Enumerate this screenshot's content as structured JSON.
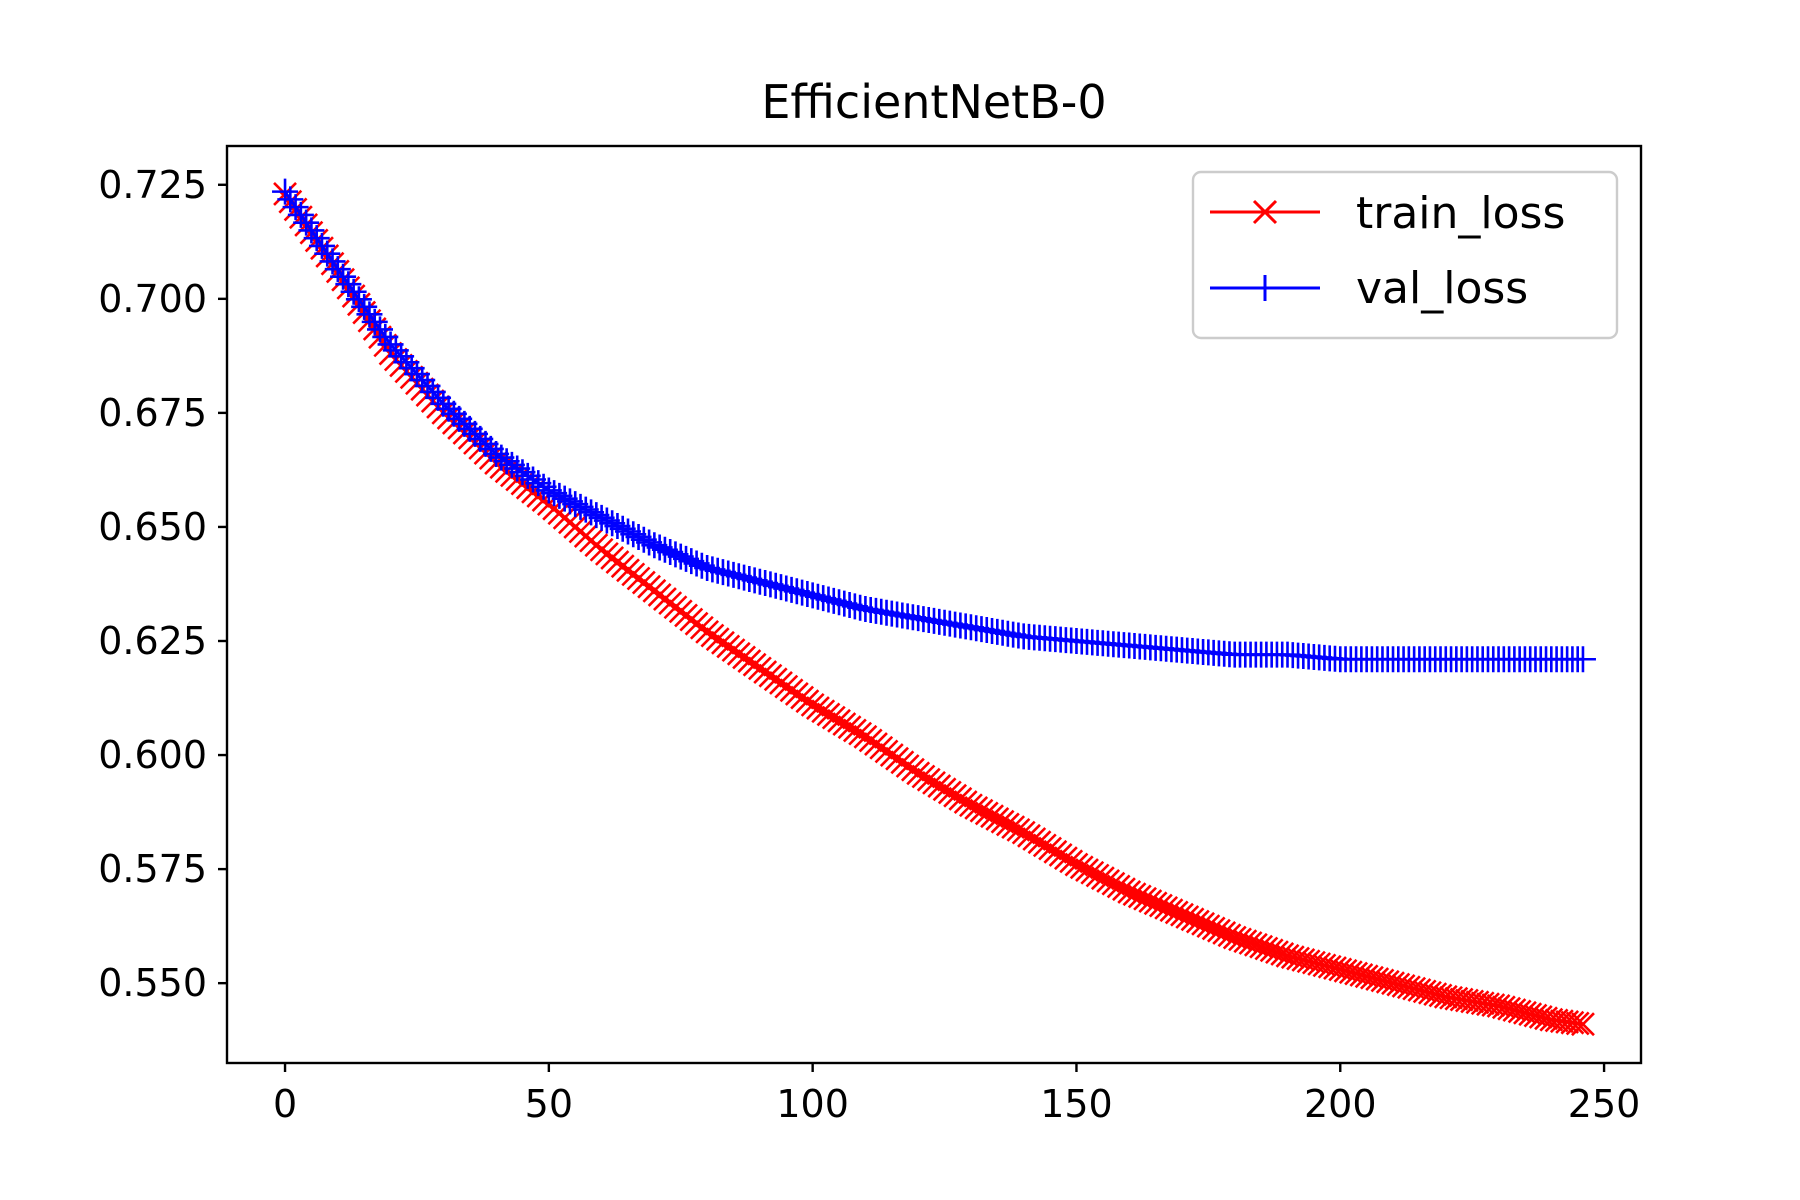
{
  "chart_data": {
    "type": "line",
    "title": "EfficientNetB-0",
    "xlabel": "",
    "ylabel": "",
    "xlim": [
      -11,
      257
    ],
    "ylim": [
      0.5325,
      0.7335
    ],
    "xticks": [
      0,
      50,
      100,
      150,
      200,
      250
    ],
    "yticks": [
      0.55,
      0.575,
      0.6,
      0.625,
      0.65,
      0.675,
      0.7,
      0.725
    ],
    "xtick_labels": [
      "0",
      "50",
      "100",
      "150",
      "200",
      "250"
    ],
    "ytick_labels": [
      "0.550",
      "0.575",
      "0.600",
      "0.625",
      "0.650",
      "0.675",
      "0.700",
      "0.725"
    ],
    "grid": false,
    "legend_position": "top-right",
    "x_start": 0,
    "x_end": 246,
    "series": [
      {
        "name": "train_loss",
        "color": "#ff0000",
        "marker": "x",
        "x": [
          0,
          10,
          20,
          30,
          40,
          50,
          60,
          70,
          80,
          90,
          100,
          110,
          120,
          130,
          140,
          150,
          160,
          170,
          180,
          190,
          200,
          210,
          220,
          230,
          240,
          246
        ],
        "y": [
          0.723,
          0.706,
          0.688,
          0.675,
          0.664,
          0.655,
          0.645,
          0.636,
          0.627,
          0.619,
          0.611,
          0.604,
          0.596,
          0.589,
          0.583,
          0.576,
          0.57,
          0.565,
          0.56,
          0.556,
          0.553,
          0.55,
          0.547,
          0.545,
          0.542,
          0.541
        ]
      },
      {
        "name": "val_loss",
        "color": "#0000ff",
        "marker": "+",
        "x": [
          0,
          10,
          20,
          30,
          40,
          50,
          60,
          70,
          80,
          90,
          100,
          110,
          120,
          130,
          140,
          150,
          160,
          170,
          180,
          190,
          200,
          210,
          220,
          230,
          240,
          246
        ],
        "y": [
          0.7235,
          0.7065,
          0.69,
          0.677,
          0.666,
          0.658,
          0.652,
          0.646,
          0.641,
          0.638,
          0.635,
          0.632,
          0.63,
          0.628,
          0.626,
          0.625,
          0.624,
          0.623,
          0.622,
          0.622,
          0.621,
          0.621,
          0.621,
          0.621,
          0.621,
          0.621
        ]
      }
    ]
  }
}
